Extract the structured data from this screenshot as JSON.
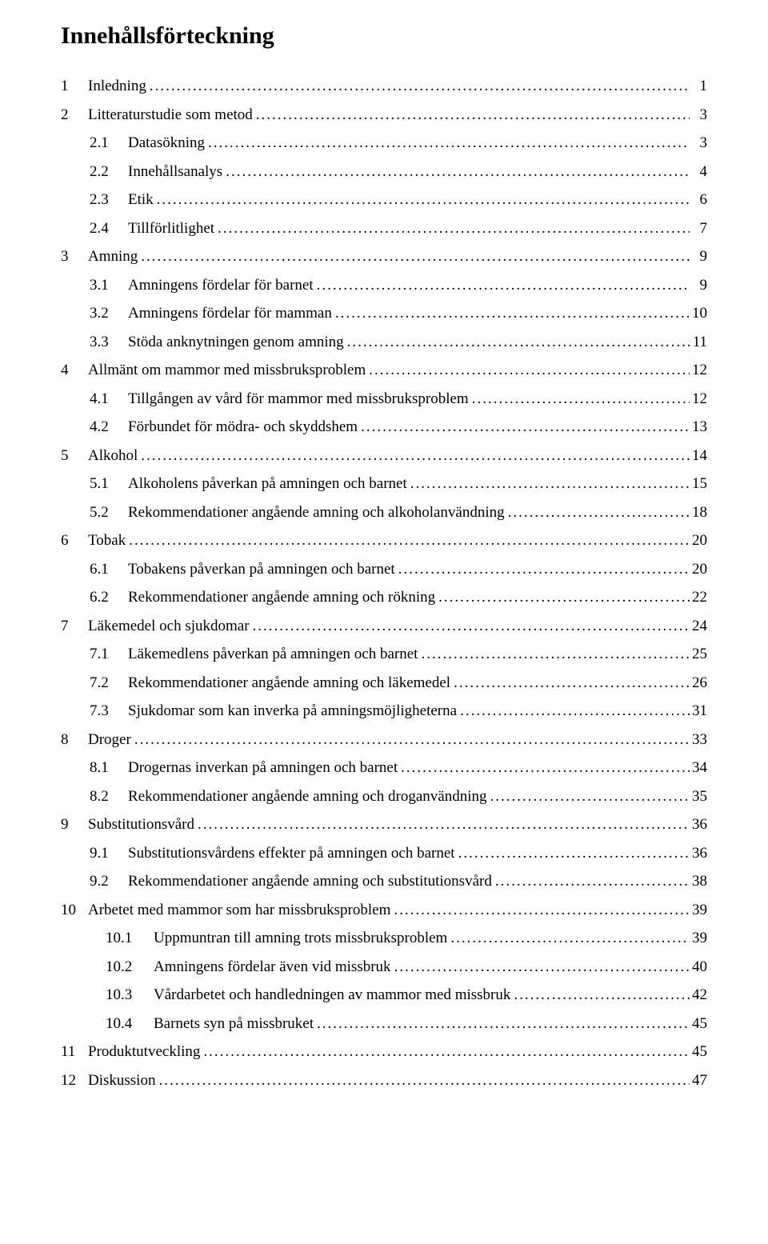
{
  "title": "Innehållsförteckning",
  "entries": [
    {
      "level": 1,
      "num": "1",
      "text": "Inledning",
      "page": "1"
    },
    {
      "level": 1,
      "num": "2",
      "text": "Litteraturstudie som metod",
      "page": "3"
    },
    {
      "level": 2,
      "num": "2.1",
      "text": "Datasökning",
      "page": "3"
    },
    {
      "level": 2,
      "num": "2.2",
      "text": "Innehållsanalys",
      "page": "4"
    },
    {
      "level": 2,
      "num": "2.3",
      "text": "Etik",
      "page": "6"
    },
    {
      "level": 2,
      "num": "2.4",
      "text": "Tillförlitlighet",
      "page": "7"
    },
    {
      "level": 1,
      "num": "3",
      "text": "Amning",
      "page": "9"
    },
    {
      "level": 2,
      "num": "3.1",
      "text": "Amningens fördelar för barnet",
      "page": "9"
    },
    {
      "level": 2,
      "num": "3.2",
      "text": "Amningens fördelar för mamman",
      "page": "10"
    },
    {
      "level": 2,
      "num": "3.3",
      "text": "Stöda anknytningen genom amning",
      "page": "11"
    },
    {
      "level": 1,
      "num": "4",
      "text": "Allmänt om mammor med missbruksproblem",
      "page": "12"
    },
    {
      "level": 2,
      "num": "4.1",
      "text": "Tillgången av vård för mammor med missbruksproblem",
      "page": "12"
    },
    {
      "level": 2,
      "num": "4.2",
      "text": "Förbundet för mödra- och skyddshem",
      "page": "13"
    },
    {
      "level": 1,
      "num": "5",
      "text": "Alkohol",
      "page": "14"
    },
    {
      "level": 2,
      "num": "5.1",
      "text": "Alkoholens påverkan på amningen och barnet",
      "page": "15"
    },
    {
      "level": 2,
      "num": "5.2",
      "text": "Rekommendationer angående amning och alkoholanvändning",
      "page": "18"
    },
    {
      "level": 1,
      "num": "6",
      "text": "Tobak",
      "page": "20"
    },
    {
      "level": 2,
      "num": "6.1",
      "text": "Tobakens påverkan på amningen och barnet",
      "page": "20"
    },
    {
      "level": 2,
      "num": "6.2",
      "text": "Rekommendationer angående amning och rökning",
      "page": "22"
    },
    {
      "level": 1,
      "num": "7",
      "text": "Läkemedel och sjukdomar",
      "page": "24"
    },
    {
      "level": 2,
      "num": "7.1",
      "text": "Läkemedlens påverkan på amningen och barnet",
      "page": "25"
    },
    {
      "level": 2,
      "num": "7.2",
      "text": "Rekommendationer angående amning och läkemedel",
      "page": "26"
    },
    {
      "level": 2,
      "num": "7.3",
      "text": "Sjukdomar som kan inverka på amningsmöjligheterna",
      "page": "31"
    },
    {
      "level": 1,
      "num": "8",
      "text": "Droger",
      "page": "33"
    },
    {
      "level": 2,
      "num": "8.1",
      "text": "Drogernas inverkan på amningen och barnet",
      "page": "34"
    },
    {
      "level": 2,
      "num": "8.2",
      "text": "Rekommendationer angående amning och droganvändning",
      "page": "35"
    },
    {
      "level": 1,
      "num": "9",
      "text": "Substitutionsvård",
      "page": "36"
    },
    {
      "level": 2,
      "num": "9.1",
      "text": "Substitutionsvårdens effekter på amningen och barnet",
      "page": "36"
    },
    {
      "level": 2,
      "num": "9.2",
      "text": "Rekommendationer angående amning och substitutionsvård",
      "page": "38"
    },
    {
      "level": 1,
      "num": "10",
      "text": "Arbetet med mammor som har missbruksproblem",
      "page": "39"
    },
    {
      "level": 3,
      "num": "10.1",
      "text": "Uppmuntran till amning trots missbruksproblem",
      "page": "39"
    },
    {
      "level": 3,
      "num": "10.2",
      "text": "Amningens fördelar även vid missbruk",
      "page": "40"
    },
    {
      "level": 3,
      "num": "10.3",
      "text": "Vårdarbetet och handledningen av mammor med missbruk",
      "page": "42"
    },
    {
      "level": 3,
      "num": "10.4",
      "text": "Barnets syn på missbruket",
      "page": "45"
    },
    {
      "level": 1,
      "num": "11",
      "text": "Produktutveckling",
      "page": "45"
    },
    {
      "level": 1,
      "num": "12",
      "text": "Diskussion",
      "page": "47"
    }
  ]
}
